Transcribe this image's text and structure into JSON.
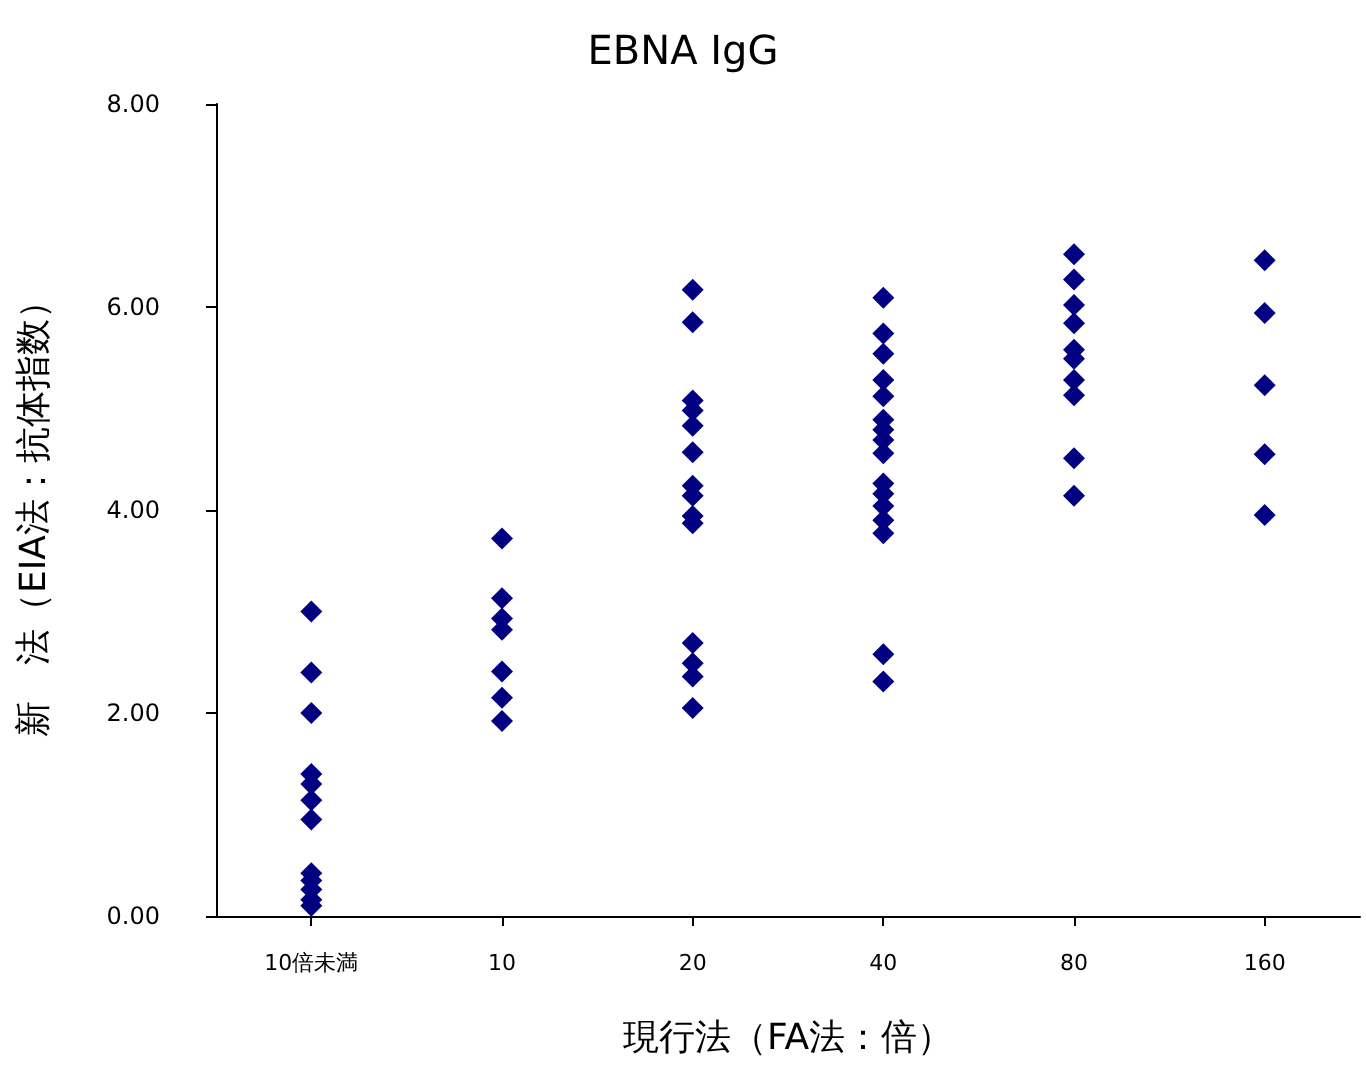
{
  "chart_data": {
    "type": "scatter",
    "title": "EBNA IgG",
    "xlabel": "現行法（FA法：倍）",
    "ylabel": "新　法（EIA法：抗体指数）",
    "categories": [
      "10倍未満",
      "10",
      "20",
      "40",
      "80",
      "160"
    ],
    "series": [
      {
        "color": "#000080",
        "x": [
          "10倍未満",
          "10倍未満",
          "10倍未満",
          "10倍未満",
          "10倍未満",
          "10倍未満",
          "10倍未満",
          "10倍未満",
          "10倍未満",
          "10倍未満",
          "10倍未満",
          "10倍未満",
          "10",
          "10",
          "10",
          "10",
          "10",
          "10",
          "10",
          "20",
          "20",
          "20",
          "20",
          "20",
          "20",
          "20",
          "20",
          "20",
          "20",
          "20",
          "20",
          "20",
          "20",
          "40",
          "40",
          "40",
          "40",
          "40",
          "40",
          "40",
          "40",
          "40",
          "40",
          "40",
          "40",
          "40",
          "40",
          "40",
          "40",
          "80",
          "80",
          "80",
          "80",
          "80",
          "80",
          "80",
          "80",
          "80",
          "80",
          "160",
          "160",
          "160",
          "160",
          "160"
        ],
        "values": [
          3.0,
          2.4,
          2.0,
          1.4,
          1.3,
          1.14,
          0.95,
          0.42,
          0.35,
          0.26,
          0.16,
          0.1,
          3.72,
          3.13,
          2.93,
          2.82,
          2.41,
          2.15,
          1.92,
          6.17,
          5.85,
          5.08,
          4.98,
          4.83,
          4.57,
          4.24,
          4.14,
          3.94,
          3.87,
          2.69,
          2.49,
          2.36,
          2.05,
          6.09,
          5.74,
          5.54,
          5.28,
          5.12,
          4.89,
          4.79,
          4.69,
          4.56,
          4.26,
          4.16,
          4.04,
          3.9,
          3.77,
          2.58,
          2.31,
          6.52,
          6.27,
          6.02,
          5.84,
          5.58,
          5.49,
          5.28,
          5.13,
          4.51,
          4.14,
          6.46,
          5.94,
          5.23,
          4.55,
          3.95
        ]
      }
    ],
    "ylim": [
      0,
      8
    ],
    "yticks": [
      {
        "value": 0,
        "label": "0.00"
      },
      {
        "value": 2,
        "label": "2.00"
      },
      {
        "value": 4,
        "label": "4.00"
      },
      {
        "value": 6,
        "label": "6.00"
      },
      {
        "value": 8,
        "label": "8.00"
      }
    ],
    "marker": "diamond",
    "grid": false
  }
}
